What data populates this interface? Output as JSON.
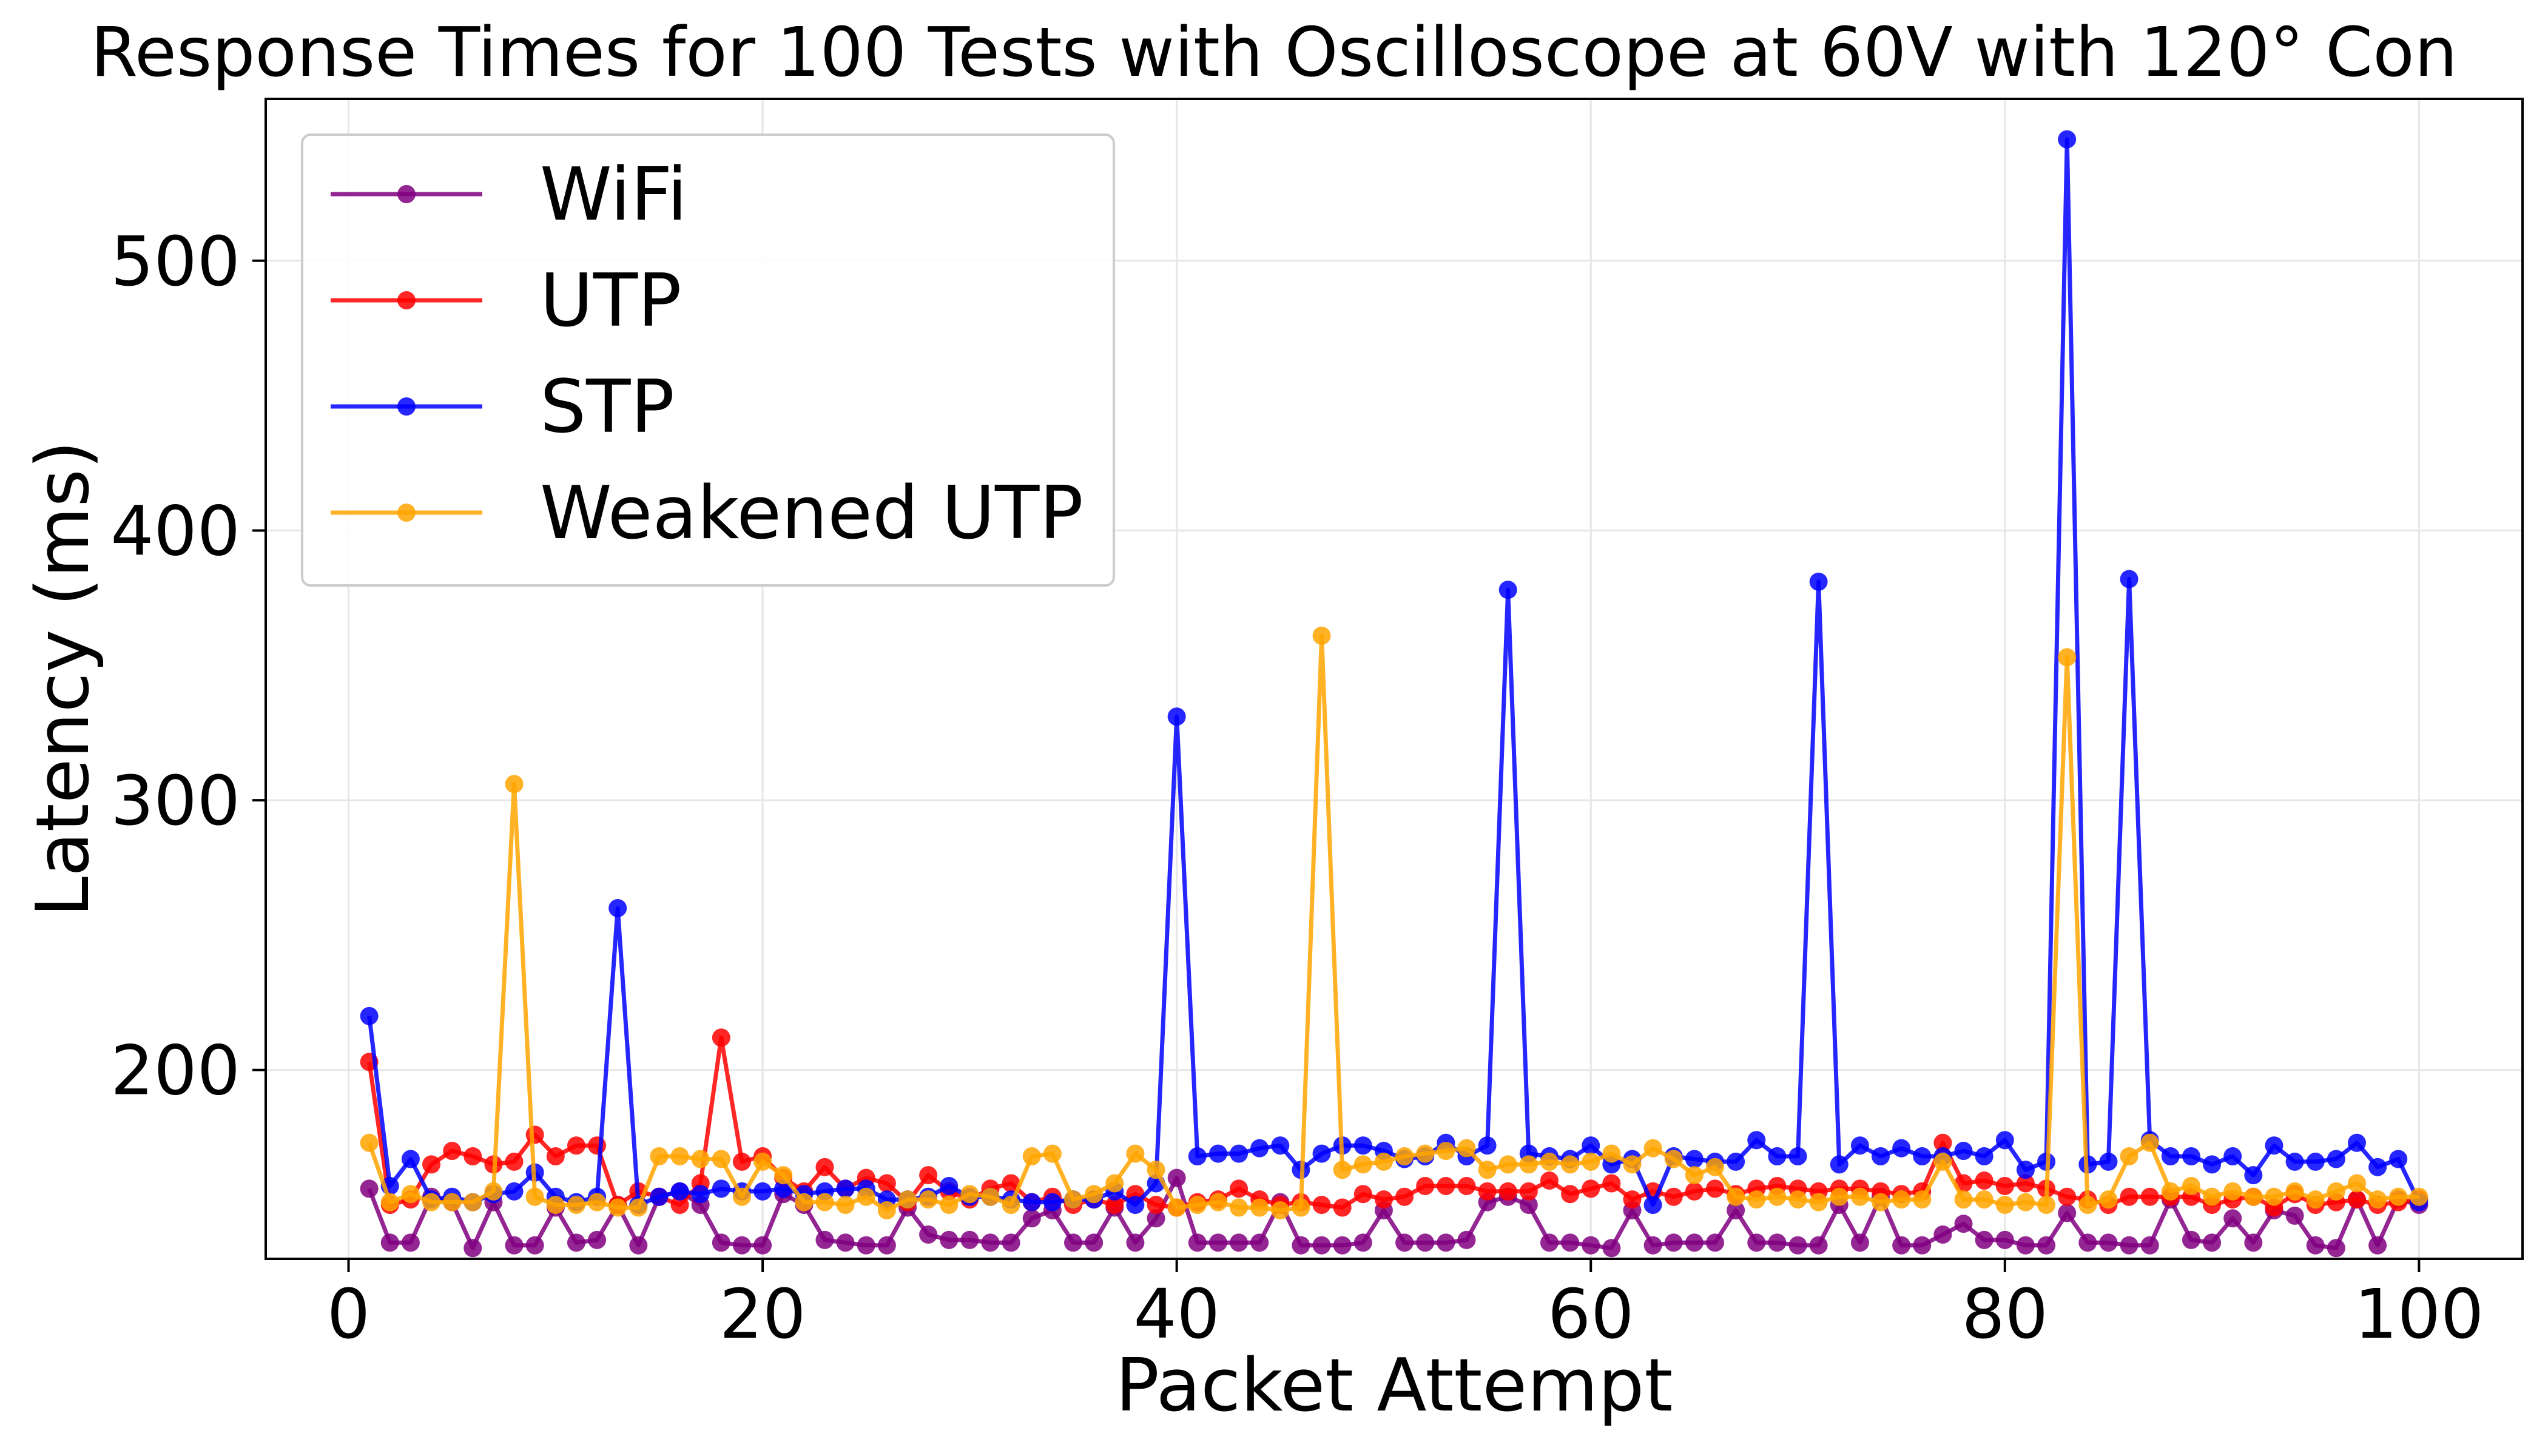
{
  "chart_data": {
    "type": "line",
    "title": "Response Times for 100 Tests with Oscilloscope at 60V with 120° Con",
    "xlabel": "Packet Attempt",
    "ylabel": "Latency (ms)",
    "xlim": [
      -4,
      105
    ],
    "ylim": [
      130,
      560
    ],
    "xticks": [
      0,
      20,
      40,
      60,
      80,
      100
    ],
    "yticks": [
      200,
      300,
      400,
      500
    ],
    "grid": true,
    "legend_position": "upper-left",
    "series": [
      {
        "name": "WiFi",
        "color": "#800080",
        "values": [
          156,
          136,
          136,
          153,
          151,
          134,
          151,
          135,
          135,
          149,
          136,
          137,
          150,
          135,
          153,
          155,
          150,
          136,
          135,
          135,
          154,
          150,
          137,
          136,
          135,
          135,
          149,
          139,
          137,
          137,
          136,
          136,
          145,
          148,
          136,
          136,
          149,
          136,
          145,
          160,
          136,
          136,
          136,
          136,
          151,
          135,
          135,
          135,
          136,
          148,
          136,
          136,
          136,
          137,
          151,
          153,
          150,
          136,
          136,
          135,
          134,
          148,
          135,
          136,
          136,
          136,
          148,
          136,
          136,
          135,
          135,
          150,
          136,
          153,
          135,
          135,
          139,
          143,
          137,
          137,
          135,
          135,
          147,
          136,
          136,
          135,
          135,
          152,
          137,
          136,
          145,
          136,
          148,
          146,
          135,
          134,
          152,
          135,
          152,
          150
        ]
      },
      {
        "name": "UTP",
        "color": "#ff0000",
        "values": [
          203,
          150,
          152,
          165,
          170,
          168,
          165,
          166,
          176,
          168,
          172,
          172,
          150,
          155,
          153,
          150,
          158,
          212,
          166,
          168,
          160,
          155,
          164,
          156,
          160,
          158,
          151,
          161,
          155,
          152,
          156,
          158,
          151,
          153,
          150,
          152,
          150,
          154,
          150,
          149,
          151,
          152,
          156,
          152,
          150,
          151,
          150,
          149,
          154,
          152,
          153,
          157,
          157,
          157,
          155,
          155,
          155,
          159,
          154,
          156,
          158,
          152,
          155,
          153,
          155,
          156,
          154,
          156,
          157,
          156,
          155,
          156,
          156,
          155,
          154,
          155,
          173,
          158,
          159,
          157,
          158,
          156,
          153,
          152,
          150,
          153,
          153,
          153,
          153,
          150,
          152,
          153,
          149,
          154,
          150,
          151,
          152,
          150,
          151,
          152
        ]
      },
      {
        "name": "STP",
        "color": "#0000ff",
        "values": [
          220,
          157,
          167,
          152,
          153,
          151,
          154,
          155,
          162,
          153,
          151,
          153,
          260,
          150,
          153,
          155,
          154,
          156,
          155,
          155,
          156,
          154,
          155,
          156,
          156,
          152,
          152,
          153,
          157,
          153,
          153,
          152,
          151,
          151,
          152,
          152,
          155,
          150,
          158,
          331,
          168,
          169,
          169,
          171,
          172,
          163,
          169,
          172,
          172,
          170,
          167,
          168,
          173,
          168,
          172,
          378,
          169,
          168,
          167,
          172,
          165,
          167,
          150,
          168,
          167,
          166,
          166,
          174,
          168,
          168,
          381,
          165,
          172,
          168,
          171,
          168,
          168,
          170,
          168,
          174,
          163,
          166,
          545,
          165,
          166,
          382,
          174,
          168,
          168,
          165,
          168,
          161,
          172,
          166,
          166,
          167,
          173,
          164,
          167,
          151
        ]
      },
      {
        "name": "Weakened UTP",
        "color": "#ffa500",
        "values": [
          173,
          151,
          154,
          151,
          151,
          151,
          155,
          306,
          153,
          150,
          150,
          151,
          149,
          149,
          168,
          168,
          167,
          167,
          153,
          166,
          161,
          151,
          151,
          150,
          153,
          148,
          152,
          152,
          150,
          154,
          153,
          150,
          168,
          169,
          152,
          154,
          158,
          169,
          163,
          149,
          150,
          151,
          149,
          149,
          148,
          149,
          361,
          163,
          165,
          166,
          168,
          169,
          170,
          171,
          163,
          165,
          165,
          166,
          165,
          166,
          169,
          165,
          171,
          167,
          161,
          164,
          153,
          152,
          153,
          152,
          151,
          153,
          153,
          151,
          152,
          152,
          166,
          152,
          152,
          150,
          151,
          150,
          353,
          150,
          152,
          168,
          173,
          155,
          157,
          153,
          155,
          153,
          153,
          155,
          152,
          155,
          158,
          152,
          153,
          153
        ]
      }
    ]
  }
}
